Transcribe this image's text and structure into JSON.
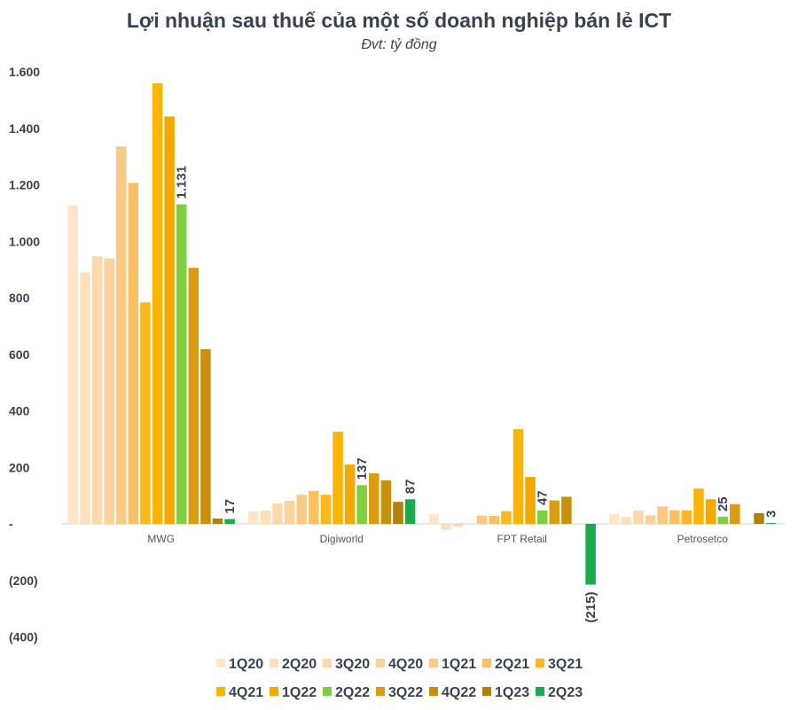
{
  "chart_data": {
    "type": "bar",
    "title": "Lợi nhuận sau thuế của một số doanh nghiệp bán lẻ ICT",
    "subtitle": "Đvt: tỷ đồng",
    "xlabel": "",
    "ylabel": "",
    "ylim": [
      -400,
      1600
    ],
    "yticks": [
      -400,
      -200,
      0,
      200,
      400,
      600,
      800,
      1000,
      1200,
      1400,
      1600
    ],
    "ytick_labels": [
      "(400)",
      "(200)",
      "-",
      "200",
      "400",
      "600",
      "800",
      "1.000",
      "1.200",
      "1.400",
      "1.600"
    ],
    "grid": false,
    "legend_position": "bottom",
    "categories": [
      "MWG",
      "Digiworld",
      "FPT Retail",
      "Petrosetco"
    ],
    "series": [
      {
        "name": "1Q20",
        "color": "#fde6c6",
        "values": [
          1127,
          44,
          34,
          35
        ]
      },
      {
        "name": "2Q20",
        "color": "#fde0b9",
        "values": [
          890,
          47,
          -20,
          25
        ]
      },
      {
        "name": "3Q20",
        "color": "#fcd9aa",
        "values": [
          947,
          72,
          -10,
          48
        ]
      },
      {
        "name": "4Q20",
        "color": "#fbd29a",
        "values": [
          940,
          82,
          0,
          30
        ]
      },
      {
        "name": "1Q21",
        "color": "#fbca82",
        "values": [
          1336,
          103,
          29,
          62
        ]
      },
      {
        "name": "2Q21",
        "color": "#fbc060",
        "values": [
          1207,
          116,
          28,
          48
        ]
      },
      {
        "name": "3Q21",
        "color": "#fbb81c",
        "values": [
          784,
          103,
          45,
          48
        ]
      },
      {
        "name": "4Q21",
        "color": "#fbb400",
        "values": [
          1559,
          326,
          335,
          125
        ]
      },
      {
        "name": "1Q22",
        "color": "#f5a900",
        "values": [
          1442,
          210,
          166,
          87
        ]
      },
      {
        "name": "2Q22",
        "color": "#7dd13c",
        "values": [
          1131,
          137,
          47,
          25
        ],
        "data_labels": [
          "1.131",
          "137",
          "47",
          "25"
        ]
      },
      {
        "name": "3Q22",
        "color": "#dc9c0c",
        "values": [
          906,
          179,
          83,
          70
        ]
      },
      {
        "name": "4Q22",
        "color": "#c9900c",
        "values": [
          618,
          154,
          96,
          0
        ]
      },
      {
        "name": "1Q23",
        "color": "#b3800c",
        "values": [
          19,
          78,
          0,
          38
        ]
      },
      {
        "name": "2Q23",
        "color": "#16ae4c",
        "values": [
          17,
          87,
          -215,
          3
        ],
        "data_labels": [
          "17",
          "87",
          "(215)",
          "3"
        ]
      }
    ]
  }
}
